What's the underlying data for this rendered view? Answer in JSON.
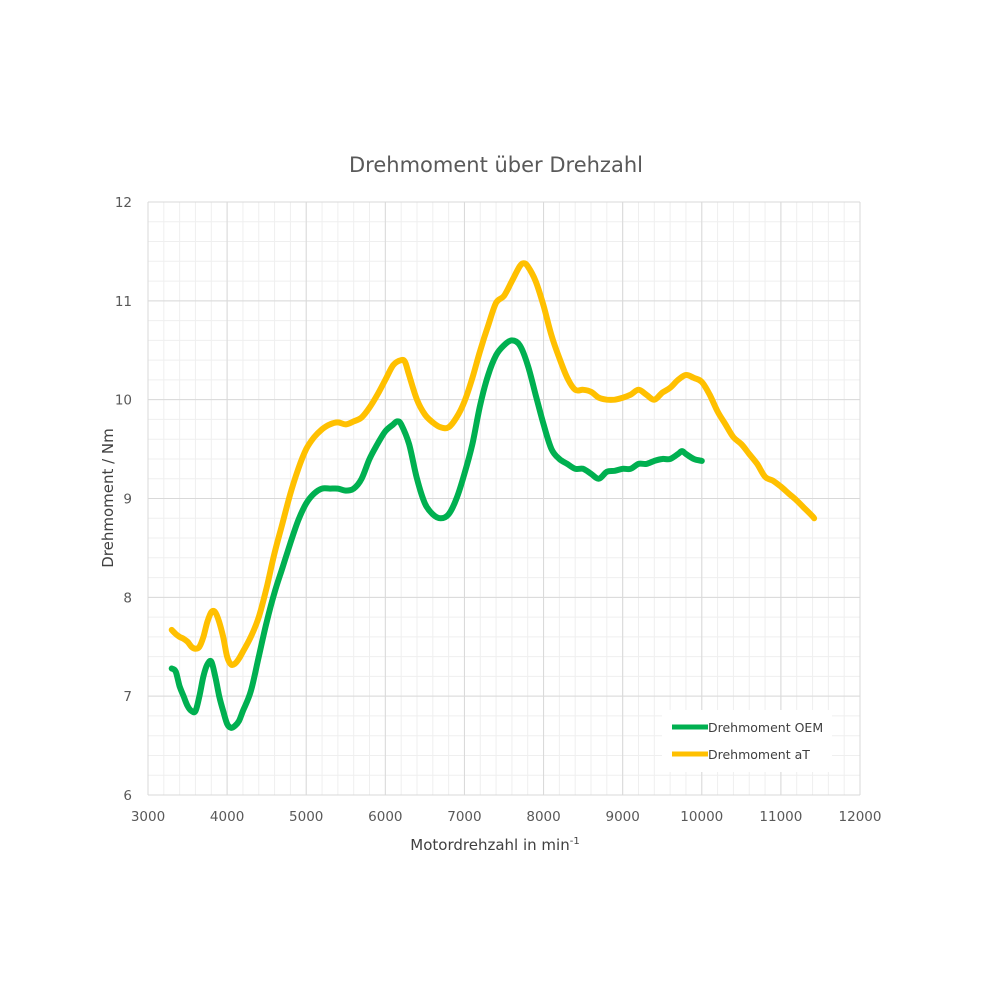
{
  "chart_data": {
    "type": "line",
    "title": "Drehmoment über Drehzahl",
    "xlabel": "Motordrehzahl in min",
    "xlabel_sup": "-1",
    "ylabel": "Drehmoment / Nm",
    "xlim": [
      3000,
      12000
    ],
    "ylim": [
      6,
      12
    ],
    "xticks": [
      3000,
      4000,
      5000,
      6000,
      7000,
      8000,
      9000,
      10000,
      11000,
      12000
    ],
    "yticks": [
      6,
      7,
      8,
      9,
      10,
      11,
      12
    ],
    "grid": true,
    "legend_position": "bottom-right",
    "series": [
      {
        "name": "Drehmoment OEM",
        "color": "#00B050",
        "points": [
          [
            3300,
            7.28
          ],
          [
            3350,
            7.25
          ],
          [
            3400,
            7.1
          ],
          [
            3450,
            7.0
          ],
          [
            3500,
            6.9
          ],
          [
            3550,
            6.85
          ],
          [
            3600,
            6.85
          ],
          [
            3650,
            7.0
          ],
          [
            3700,
            7.2
          ],
          [
            3750,
            7.32
          ],
          [
            3800,
            7.35
          ],
          [
            3850,
            7.2
          ],
          [
            3900,
            7.0
          ],
          [
            3950,
            6.85
          ],
          [
            4000,
            6.72
          ],
          [
            4050,
            6.68
          ],
          [
            4100,
            6.7
          ],
          [
            4150,
            6.75
          ],
          [
            4200,
            6.85
          ],
          [
            4300,
            7.05
          ],
          [
            4400,
            7.4
          ],
          [
            4500,
            7.75
          ],
          [
            4600,
            8.05
          ],
          [
            4700,
            8.3
          ],
          [
            4800,
            8.55
          ],
          [
            4900,
            8.78
          ],
          [
            5000,
            8.95
          ],
          [
            5100,
            9.05
          ],
          [
            5200,
            9.1
          ],
          [
            5300,
            9.1
          ],
          [
            5400,
            9.1
          ],
          [
            5500,
            9.08
          ],
          [
            5600,
            9.1
          ],
          [
            5700,
            9.2
          ],
          [
            5800,
            9.4
          ],
          [
            5900,
            9.55
          ],
          [
            6000,
            9.68
          ],
          [
            6100,
            9.75
          ],
          [
            6150,
            9.78
          ],
          [
            6200,
            9.75
          ],
          [
            6300,
            9.55
          ],
          [
            6400,
            9.2
          ],
          [
            6500,
            8.95
          ],
          [
            6600,
            8.84
          ],
          [
            6700,
            8.8
          ],
          [
            6800,
            8.84
          ],
          [
            6900,
            9.0
          ],
          [
            7000,
            9.25
          ],
          [
            7100,
            9.55
          ],
          [
            7200,
            9.95
          ],
          [
            7300,
            10.25
          ],
          [
            7400,
            10.45
          ],
          [
            7500,
            10.55
          ],
          [
            7600,
            10.6
          ],
          [
            7700,
            10.55
          ],
          [
            7800,
            10.35
          ],
          [
            7900,
            10.05
          ],
          [
            8000,
            9.75
          ],
          [
            8100,
            9.5
          ],
          [
            8200,
            9.4
          ],
          [
            8300,
            9.35
          ],
          [
            8400,
            9.3
          ],
          [
            8500,
            9.3
          ],
          [
            8600,
            9.25
          ],
          [
            8700,
            9.2
          ],
          [
            8800,
            9.27
          ],
          [
            8900,
            9.28
          ],
          [
            9000,
            9.3
          ],
          [
            9100,
            9.3
          ],
          [
            9200,
            9.35
          ],
          [
            9300,
            9.35
          ],
          [
            9400,
            9.38
          ],
          [
            9500,
            9.4
          ],
          [
            9600,
            9.4
          ],
          [
            9700,
            9.45
          ],
          [
            9750,
            9.48
          ],
          [
            9800,
            9.45
          ],
          [
            9900,
            9.4
          ],
          [
            10000,
            9.38
          ]
        ]
      },
      {
        "name": "Drehmoment aT",
        "color": "#FFC000",
        "points": [
          [
            3300,
            7.67
          ],
          [
            3350,
            7.63
          ],
          [
            3400,
            7.6
          ],
          [
            3450,
            7.58
          ],
          [
            3500,
            7.55
          ],
          [
            3550,
            7.5
          ],
          [
            3600,
            7.48
          ],
          [
            3650,
            7.5
          ],
          [
            3700,
            7.6
          ],
          [
            3750,
            7.75
          ],
          [
            3800,
            7.85
          ],
          [
            3850,
            7.85
          ],
          [
            3900,
            7.75
          ],
          [
            3950,
            7.6
          ],
          [
            4000,
            7.4
          ],
          [
            4050,
            7.32
          ],
          [
            4100,
            7.33
          ],
          [
            4150,
            7.38
          ],
          [
            4200,
            7.45
          ],
          [
            4300,
            7.6
          ],
          [
            4400,
            7.8
          ],
          [
            4500,
            8.1
          ],
          [
            4600,
            8.45
          ],
          [
            4700,
            8.75
          ],
          [
            4800,
            9.05
          ],
          [
            4900,
            9.3
          ],
          [
            5000,
            9.5
          ],
          [
            5100,
            9.62
          ],
          [
            5200,
            9.7
          ],
          [
            5300,
            9.75
          ],
          [
            5400,
            9.77
          ],
          [
            5500,
            9.75
          ],
          [
            5600,
            9.78
          ],
          [
            5700,
            9.82
          ],
          [
            5800,
            9.92
          ],
          [
            5900,
            10.05
          ],
          [
            6000,
            10.2
          ],
          [
            6100,
            10.35
          ],
          [
            6200,
            10.4
          ],
          [
            6250,
            10.38
          ],
          [
            6300,
            10.25
          ],
          [
            6400,
            10.0
          ],
          [
            6500,
            9.85
          ],
          [
            6600,
            9.77
          ],
          [
            6700,
            9.72
          ],
          [
            6800,
            9.72
          ],
          [
            6900,
            9.82
          ],
          [
            7000,
            9.98
          ],
          [
            7100,
            10.22
          ],
          [
            7200,
            10.5
          ],
          [
            7300,
            10.75
          ],
          [
            7400,
            10.98
          ],
          [
            7500,
            11.05
          ],
          [
            7600,
            11.2
          ],
          [
            7700,
            11.35
          ],
          [
            7750,
            11.38
          ],
          [
            7800,
            11.35
          ],
          [
            7900,
            11.2
          ],
          [
            8000,
            10.95
          ],
          [
            8100,
            10.65
          ],
          [
            8200,
            10.42
          ],
          [
            8300,
            10.22
          ],
          [
            8400,
            10.1
          ],
          [
            8500,
            10.1
          ],
          [
            8600,
            10.08
          ],
          [
            8700,
            10.02
          ],
          [
            8800,
            10.0
          ],
          [
            8900,
            10.0
          ],
          [
            9000,
            10.02
          ],
          [
            9100,
            10.05
          ],
          [
            9200,
            10.1
          ],
          [
            9300,
            10.05
          ],
          [
            9400,
            10.0
          ],
          [
            9500,
            10.07
          ],
          [
            9600,
            10.12
          ],
          [
            9700,
            10.2
          ],
          [
            9800,
            10.25
          ],
          [
            9900,
            10.22
          ],
          [
            10000,
            10.18
          ],
          [
            10100,
            10.05
          ],
          [
            10200,
            9.88
          ],
          [
            10300,
            9.75
          ],
          [
            10400,
            9.62
          ],
          [
            10500,
            9.55
          ],
          [
            10600,
            9.45
          ],
          [
            10700,
            9.35
          ],
          [
            10800,
            9.22
          ],
          [
            10900,
            9.18
          ],
          [
            11000,
            9.12
          ],
          [
            11100,
            9.05
          ],
          [
            11200,
            8.98
          ],
          [
            11300,
            8.9
          ],
          [
            11400,
            8.82
          ],
          [
            11420,
            8.8
          ]
        ]
      }
    ]
  }
}
